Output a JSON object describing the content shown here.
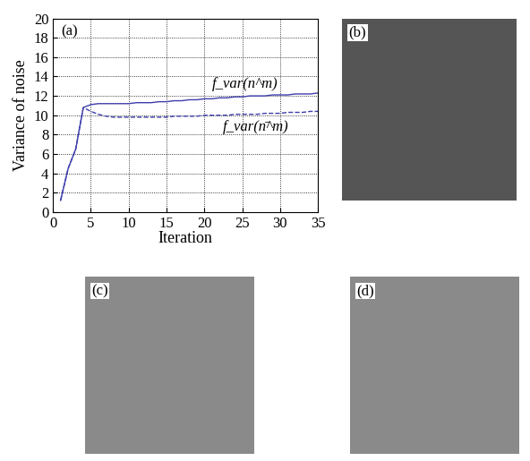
{
  "chart_data": {
    "type": "line",
    "panel_label": "(a)",
    "x_label": "Iteration",
    "y_label": "Variance of noise",
    "x": [
      1,
      2,
      3,
      4,
      5,
      6,
      7,
      8,
      9,
      10,
      11,
      12,
      13,
      14,
      15,
      16,
      17,
      18,
      19,
      20,
      21,
      22,
      23,
      24,
      25,
      26,
      27,
      28,
      29,
      30,
      31,
      32,
      33,
      34,
      35
    ],
    "series": [
      {
        "name": "f_var(n^m)",
        "color": "#3d3dab",
        "line_style": "solid",
        "values": [
          1.2,
          4.5,
          6.5,
          10.8,
          11.1,
          11.2,
          11.2,
          11.2,
          11.2,
          11.2,
          11.3,
          11.3,
          11.3,
          11.4,
          11.4,
          11.5,
          11.5,
          11.6,
          11.6,
          11.7,
          11.7,
          11.8,
          11.8,
          11.9,
          11.9,
          12.0,
          12.0,
          12.0,
          12.1,
          12.1,
          12.1,
          12.2,
          12.2,
          12.2,
          12.3
        ]
      },
      {
        "name": "f_var(n̄^m)",
        "color": "#3d3dab",
        "line_style": "dashed",
        "values": [
          1.2,
          4.5,
          6.5,
          10.8,
          10.4,
          10.1,
          9.9,
          9.8,
          9.8,
          9.8,
          9.8,
          9.8,
          9.8,
          9.8,
          9.8,
          9.9,
          9.9,
          9.9,
          9.9,
          10.0,
          10.0,
          10.0,
          10.0,
          10.1,
          10.1,
          10.1,
          10.1,
          10.2,
          10.2,
          10.2,
          10.3,
          10.3,
          10.3,
          10.4,
          10.4
        ]
      }
    ],
    "xlim": [
      0,
      35
    ],
    "xticks": [
      0,
      5,
      10,
      15,
      20,
      25,
      30,
      35
    ],
    "ylim": [
      0,
      20
    ],
    "yticks": [
      0,
      2,
      4,
      6,
      8,
      10,
      12,
      14,
      16,
      18,
      20
    ],
    "grid": true
  },
  "images": [
    {
      "label": "(b)"
    },
    {
      "label": "(c)"
    },
    {
      "label": "(d)"
    }
  ]
}
